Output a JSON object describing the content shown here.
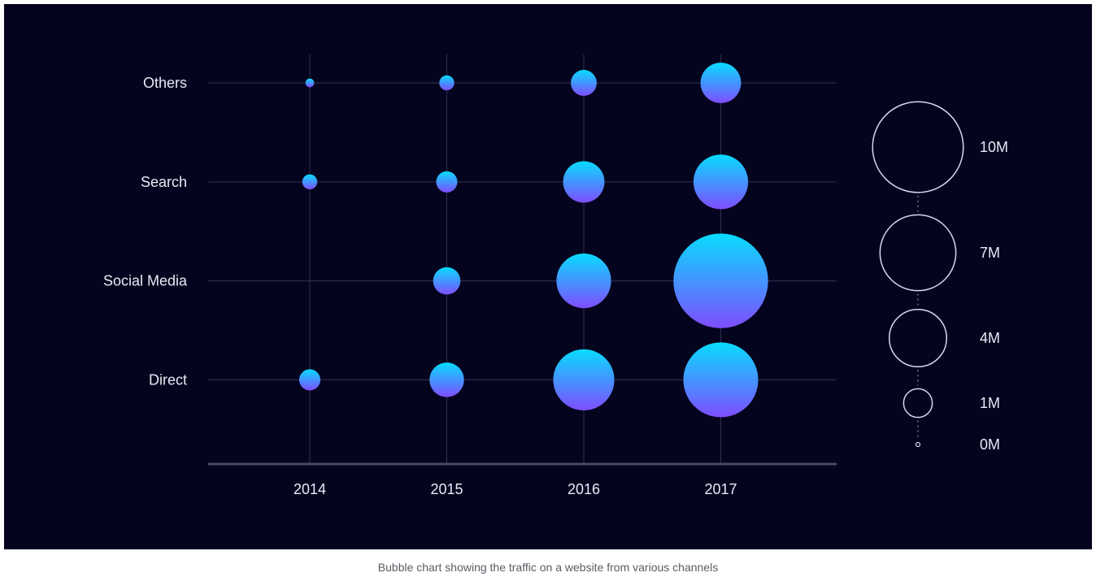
{
  "chart_data": {
    "type": "bubble",
    "x": [
      "2014",
      "2015",
      "2016",
      "2017"
    ],
    "categories": [
      "Others",
      "Search",
      "Social Media",
      "Direct"
    ],
    "points": [
      {
        "category": "Others",
        "x": "2014",
        "value": 0.1
      },
      {
        "category": "Others",
        "x": "2015",
        "value": 0.3
      },
      {
        "category": "Others",
        "x": "2016",
        "value": 0.9
      },
      {
        "category": "Others",
        "x": "2017",
        "value": 2.2
      },
      {
        "category": "Search",
        "x": "2014",
        "value": 0.3
      },
      {
        "category": "Search",
        "x": "2015",
        "value": 0.6
      },
      {
        "category": "Search",
        "x": "2016",
        "value": 2.3
      },
      {
        "category": "Search",
        "x": "2017",
        "value": 4.0
      },
      {
        "category": "Social Media",
        "x": "2015",
        "value": 1.0
      },
      {
        "category": "Social Media",
        "x": "2016",
        "value": 4.0
      },
      {
        "category": "Social Media",
        "x": "2017",
        "value": 12.0
      },
      {
        "category": "Direct",
        "x": "2014",
        "value": 0.6
      },
      {
        "category": "Direct",
        "x": "2015",
        "value": 1.6
      },
      {
        "category": "Direct",
        "x": "2016",
        "value": 5.0
      },
      {
        "category": "Direct",
        "x": "2017",
        "value": 7.5
      }
    ],
    "size_legend": [
      {
        "label": "10M",
        "value": 10
      },
      {
        "label": "7M",
        "value": 7
      },
      {
        "label": "4M",
        "value": 4
      },
      {
        "label": "1M",
        "value": 1
      },
      {
        "label": "0M",
        "value": 0
      }
    ],
    "grid": true,
    "legend_position": "right",
    "colors": {
      "background": "#05041f",
      "bubble_top": "#08dcff",
      "bubble_bottom": "#7f4dff",
      "grid": "#2a2a4a",
      "axis": "#4a4a66",
      "text": "#e8eaf4"
    }
  },
  "caption": "Bubble chart showing the traffic on a website from various channels"
}
